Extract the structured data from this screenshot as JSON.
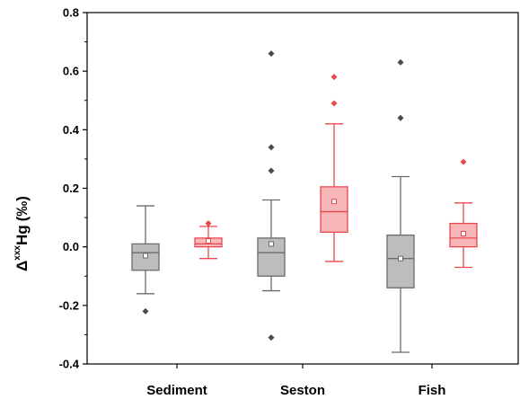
{
  "chart_data": {
    "type": "boxplot",
    "title": "",
    "xlabel": "",
    "ylabel": {
      "symbol": "Δ",
      "superscript": "xxx",
      "base": "Hg",
      "unit": "(‰)"
    },
    "categories": [
      "Sediment",
      "Seston",
      "Fish"
    ],
    "ylim": [
      -0.4,
      0.8
    ],
    "yticks": [
      "-0.4",
      "-0.2",
      "0.0",
      "0.2",
      "0.4",
      "0.6",
      "0.8"
    ],
    "grid": false,
    "legend": "none",
    "series": [
      {
        "color": "#6b6b6b",
        "fill": "#bdbdbd",
        "boxes": [
          {
            "category": "Sediment",
            "whisker_low": -0.16,
            "q1": -0.08,
            "median": -0.02,
            "q3": 0.01,
            "whisker_high": 0.14,
            "mean": -0.03,
            "outliers": [
              -0.22
            ]
          },
          {
            "category": "Seston",
            "whisker_low": -0.15,
            "q1": -0.1,
            "median": -0.02,
            "q3": 0.03,
            "whisker_high": 0.16,
            "mean": 0.01,
            "outliers": [
              0.66,
              0.34,
              0.26,
              -0.31
            ]
          },
          {
            "category": "Fish",
            "whisker_low": -0.36,
            "q1": -0.14,
            "median": -0.04,
            "q3": 0.04,
            "whisker_high": 0.24,
            "mean": -0.04,
            "outliers": [
              0.63,
              0.44
            ]
          }
        ]
      },
      {
        "color": "#e8494f",
        "fill": "#f7b6b8",
        "boxes": [
          {
            "category": "Sediment",
            "whisker_low": -0.04,
            "q1": 0.0,
            "median": 0.01,
            "q3": 0.03,
            "whisker_high": 0.07,
            "mean": 0.02,
            "outliers": [
              0.08
            ]
          },
          {
            "category": "Seston",
            "whisker_low": -0.05,
            "q1": 0.05,
            "median": 0.12,
            "q3": 0.205,
            "whisker_high": 0.42,
            "mean": 0.155,
            "outliers": [
              0.58,
              0.49
            ]
          },
          {
            "category": "Fish",
            "whisker_low": -0.07,
            "q1": 0.0,
            "median": 0.03,
            "q3": 0.08,
            "whisker_high": 0.15,
            "mean": 0.045,
            "outliers": [
              0.29
            ]
          }
        ]
      }
    ]
  }
}
